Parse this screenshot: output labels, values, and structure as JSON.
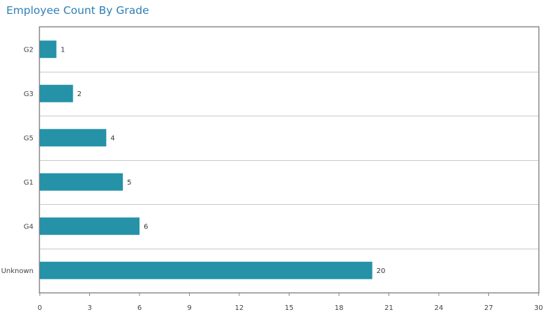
{
  "chart_data": {
    "type": "bar",
    "orientation": "horizontal",
    "title": "Employee Count By Grade",
    "categories": [
      "G2",
      "G3",
      "G5",
      "G1",
      "G4",
      "Unknown"
    ],
    "values": [
      1,
      2,
      4,
      5,
      6,
      20
    ],
    "xlim": [
      0,
      30
    ],
    "xticks": [
      0,
      3,
      6,
      9,
      12,
      15,
      18,
      21,
      24,
      27,
      30
    ],
    "data_labels": true,
    "grid": "horizontal separators between categories",
    "legend": "none",
    "colors": {
      "bar": "#2592a8",
      "title": "#2f7fb8",
      "frame": "#888888",
      "grid": "#c8c8c8"
    }
  }
}
